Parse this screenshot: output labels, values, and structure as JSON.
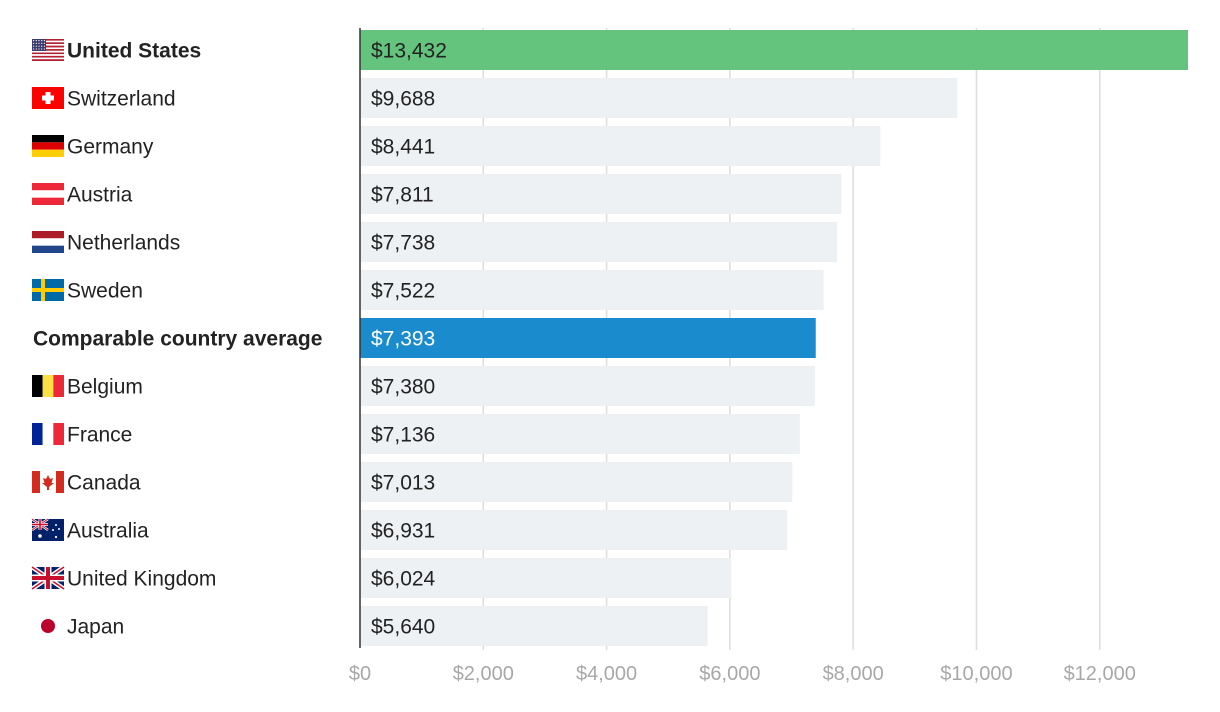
{
  "chart_data": {
    "type": "bar",
    "orientation": "horizontal",
    "title": "",
    "xlabel": "",
    "ylabel": "",
    "xlim": [
      0,
      13432
    ],
    "grid": true,
    "value_prefix": "$",
    "ticks": [
      0,
      2000,
      4000,
      6000,
      8000,
      10000,
      12000
    ],
    "tick_labels": [
      "$0",
      "$2,000",
      "$4,000",
      "$6,000",
      "$8,000",
      "$10,000",
      "$12,000"
    ],
    "categories": [
      {
        "label": "United States",
        "value": 13432,
        "value_label": "$13,432",
        "flag": "us-flag-icon",
        "highlight": "us"
      },
      {
        "label": "Switzerland",
        "value": 9688,
        "value_label": "$9,688",
        "flag": "switzerland-flag-icon",
        "highlight": "none"
      },
      {
        "label": "Germany",
        "value": 8441,
        "value_label": "$8,441",
        "flag": "germany-flag-icon",
        "highlight": "none"
      },
      {
        "label": "Austria",
        "value": 7811,
        "value_label": "$7,811",
        "flag": "austria-flag-icon",
        "highlight": "none"
      },
      {
        "label": "Netherlands",
        "value": 7738,
        "value_label": "$7,738",
        "flag": "netherlands-flag-icon",
        "highlight": "none"
      },
      {
        "label": "Sweden",
        "value": 7522,
        "value_label": "$7,522",
        "flag": "sweden-flag-icon",
        "highlight": "none"
      },
      {
        "label": "Comparable country average",
        "value": 7393,
        "value_label": "$7,393",
        "flag": "",
        "highlight": "average"
      },
      {
        "label": "Belgium",
        "value": 7380,
        "value_label": "$7,380",
        "flag": "belgium-flag-icon",
        "highlight": "none"
      },
      {
        "label": "France",
        "value": 7136,
        "value_label": "$7,136",
        "flag": "france-flag-icon",
        "highlight": "none"
      },
      {
        "label": "Canada",
        "value": 7013,
        "value_label": "$7,013",
        "flag": "canada-flag-icon",
        "highlight": "none"
      },
      {
        "label": "Australia",
        "value": 6931,
        "value_label": "$6,931",
        "flag": "australia-flag-icon",
        "highlight": "none"
      },
      {
        "label": "United Kingdom",
        "value": 6024,
        "value_label": "$6,024",
        "flag": "uk-flag-icon",
        "highlight": "none"
      },
      {
        "label": "Japan",
        "value": 5640,
        "value_label": "$5,640",
        "flag": "japan-flag-icon",
        "highlight": "none"
      }
    ],
    "colors": {
      "us": "#64c47e",
      "average": "#1a8bcc",
      "default": "#eef1f3",
      "grid": "#dddddd",
      "axis": "#333333",
      "tick_text": "#a8a8a8"
    }
  }
}
